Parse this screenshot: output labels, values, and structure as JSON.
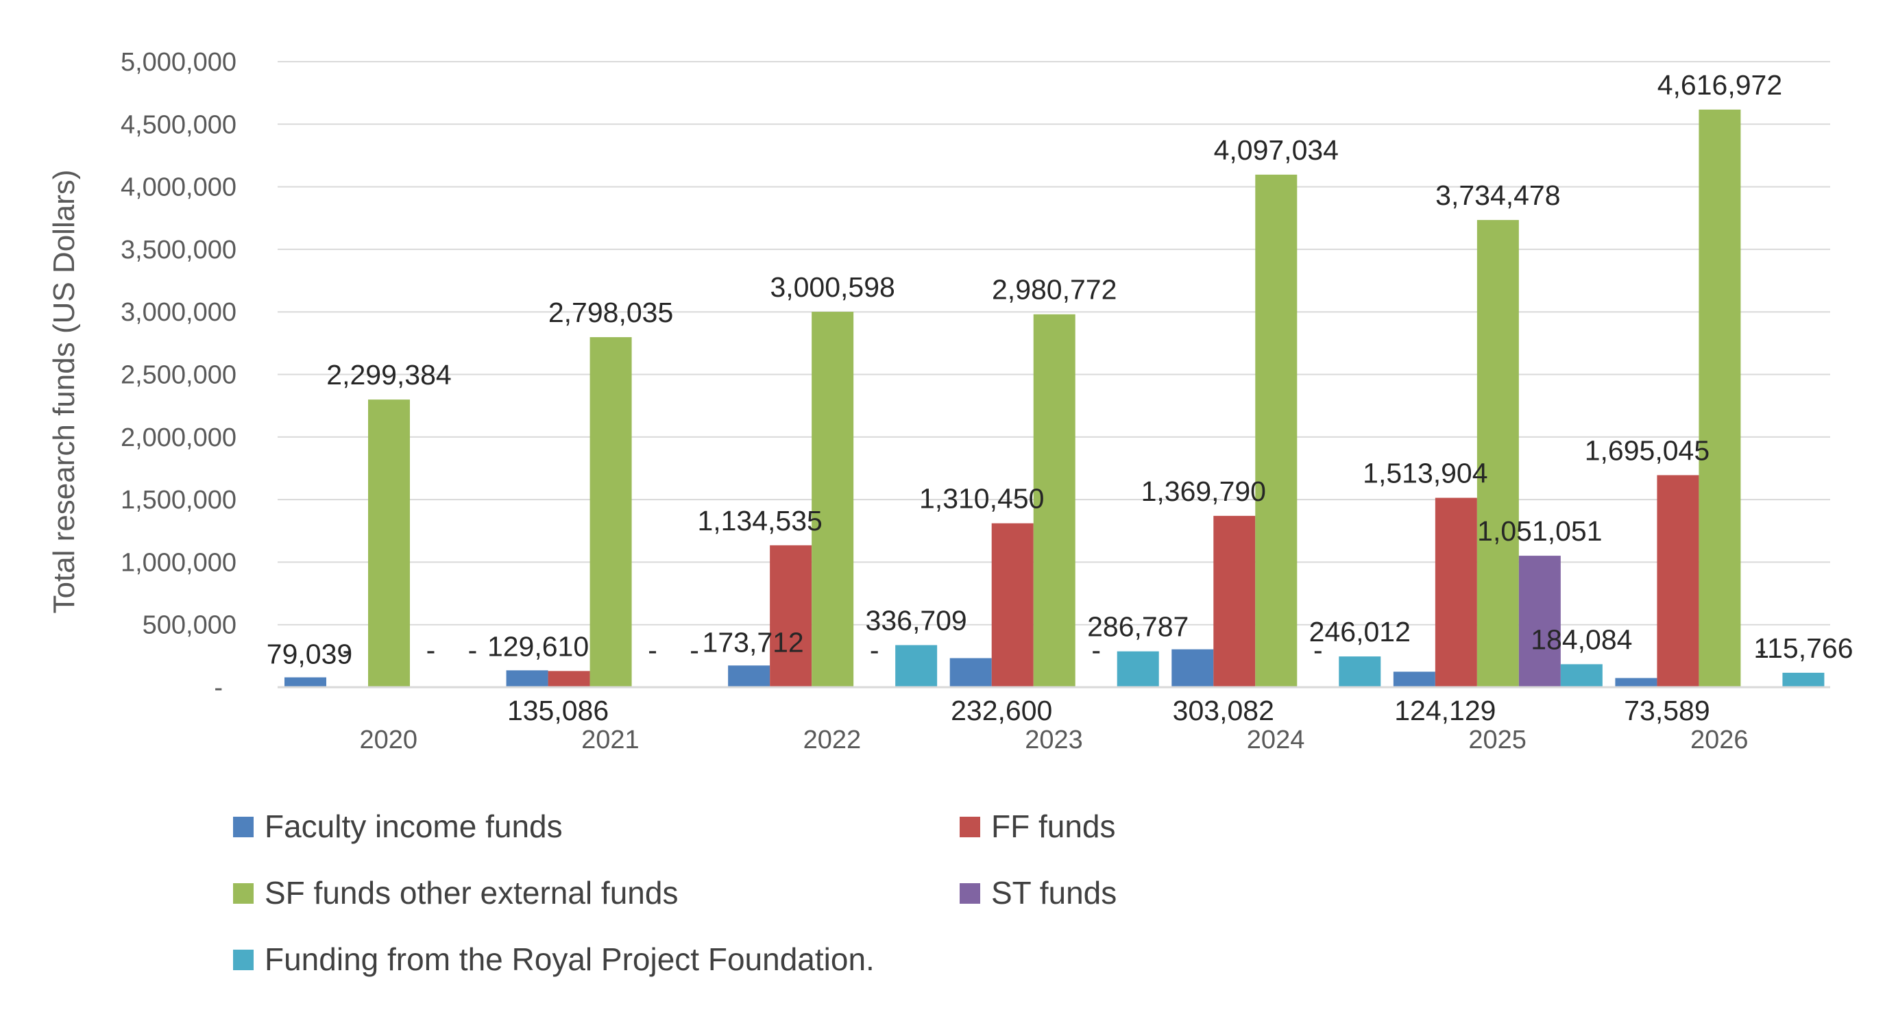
{
  "chart_data": {
    "type": "bar",
    "categories": [
      "2020",
      "2021",
      "2022",
      "2023",
      "2024",
      "2025",
      "2026"
    ],
    "ylabel": "Total research funds  (US Dollars)",
    "xlabel": "",
    "ylim": [
      0,
      5000000
    ],
    "y_ticks": [
      "-",
      "500,000",
      "1,000,000",
      "1,500,000",
      "2,000,000",
      "2,500,000",
      "3,000,000",
      "3,500,000",
      "4,000,000",
      "4,500,000",
      "5,000,000"
    ],
    "grid": true,
    "legend_position": "bottom",
    "series": [
      {
        "name": "Faculty income funds",
        "color": "#4F81BD",
        "values": [
          79039,
          135086,
          173712,
          232600,
          303082,
          124129,
          73589
        ],
        "labels": [
          "79,039",
          "135,086",
          "173,712",
          "232,600",
          "303,082",
          "124,129",
          "73,589"
        ]
      },
      {
        "name": "FF funds",
        "color": "#C0504D",
        "values": [
          0,
          129610,
          1134535,
          1310450,
          1369790,
          1513904,
          1695045
        ],
        "labels": [
          "-",
          "129,610",
          "1,134,535",
          "1,310,450",
          "1,369,790",
          "1,513,904",
          "1,695,045"
        ]
      },
      {
        "name": "SF funds other external funds",
        "color": "#9BBB59",
        "values": [
          2299384,
          2798035,
          3000598,
          2980772,
          4097034,
          3734478,
          4616972
        ],
        "labels": [
          "2,299,384",
          "2,798,035",
          "3,000,598",
          "2,980,772",
          "4,097,034",
          "3,734,478",
          "4,616,972"
        ]
      },
      {
        "name": "ST funds",
        "color": "#8064A2",
        "values": [
          0,
          0,
          0,
          0,
          0,
          1051051,
          0
        ],
        "labels": [
          "-",
          "-",
          "-",
          "-",
          "-",
          "1,051,051",
          "-"
        ]
      },
      {
        "name": "Funding from the Royal Project Foundation.",
        "color": "#4BACC6",
        "values": [
          0,
          0,
          336709,
          286787,
          246012,
          184084,
          115766
        ],
        "labels": [
          "-",
          "-",
          "336,709",
          "286,787",
          "246,012",
          "184,084",
          "115,766"
        ]
      }
    ]
  }
}
